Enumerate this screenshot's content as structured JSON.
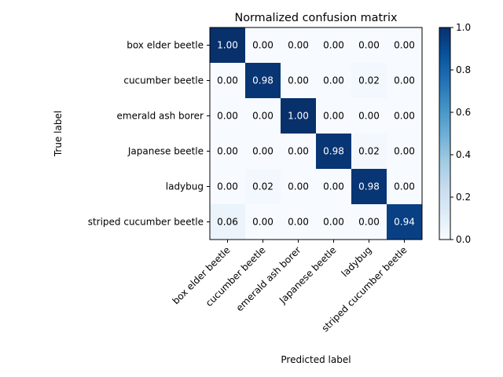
{
  "chart_data": {
    "type": "heatmap",
    "title": "Normalized confusion matrix",
    "xlabel": "Predicted label",
    "ylabel": "True label",
    "row_labels": [
      "box elder beetle",
      "cucumber beetle",
      "emerald ash borer",
      "Japanese beetle",
      "ladybug",
      "striped cucumber beetle"
    ],
    "col_labels": [
      "box elder beetle",
      "cucumber beetle",
      "emerald ash borer",
      "Japanese beetle",
      "ladybug",
      "striped cucumber beetle"
    ],
    "values": [
      [
        1.0,
        0.0,
        0.0,
        0.0,
        0.0,
        0.0
      ],
      [
        0.0,
        0.98,
        0.0,
        0.0,
        0.02,
        0.0
      ],
      [
        0.0,
        0.0,
        1.0,
        0.0,
        0.0,
        0.0
      ],
      [
        0.0,
        0.0,
        0.0,
        0.98,
        0.02,
        0.0
      ],
      [
        0.0,
        0.02,
        0.0,
        0.0,
        0.98,
        0.0
      ],
      [
        0.06,
        0.0,
        0.0,
        0.0,
        0.0,
        0.94
      ]
    ],
    "colormap": "Blues",
    "colorbar": {
      "range": [
        0.0,
        1.0
      ],
      "ticks": [
        0.0,
        0.2,
        0.4,
        0.6,
        0.8,
        1.0
      ],
      "tick_labels": [
        "0.0",
        "0.2",
        "0.4",
        "0.6",
        "0.8",
        "1.0"
      ]
    },
    "value_format": "0.00",
    "text_threshold": 0.5,
    "colors": {
      "text_dark": "#000000",
      "text_light": "#ffffff",
      "axis": "#000000",
      "background": "#ffffff"
    }
  }
}
